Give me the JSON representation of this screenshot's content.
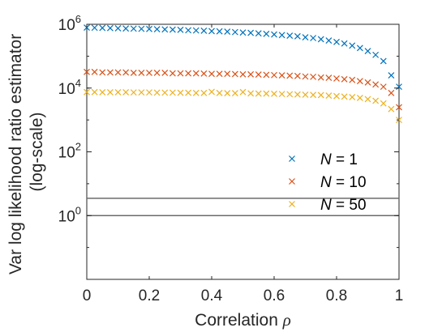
{
  "chart_data": {
    "type": "scatter",
    "xlabel": "Correlation",
    "xlabel_symbol": "ρ",
    "ylabel_line1": "Var log likelihood ratio estimator",
    "ylabel_line2": "(log-scale)",
    "y_scale": "log",
    "xlim": [
      0,
      1
    ],
    "ylim": [
      0.01,
      1000000
    ],
    "x_ticks": [
      0,
      0.2,
      0.4,
      0.6,
      0.8,
      1
    ],
    "x_tick_labels": [
      "0",
      "0.2",
      "0.4",
      "0.6",
      "0.8",
      "1"
    ],
    "y_ticks": [
      1,
      100,
      10000,
      1000000
    ],
    "y_tick_labels": [
      {
        "base": "10",
        "exp": "0"
      },
      {
        "base": "10",
        "exp": "2"
      },
      {
        "base": "10",
        "exp": "4"
      },
      {
        "base": "10",
        "exp": "6"
      }
    ],
    "grid": false,
    "legend_position": "lower-right",
    "marker": "x",
    "x": [
      0,
      0.025,
      0.05,
      0.075,
      0.1,
      0.125,
      0.15,
      0.175,
      0.2,
      0.225,
      0.25,
      0.275,
      0.3,
      0.325,
      0.35,
      0.375,
      0.4,
      0.425,
      0.45,
      0.475,
      0.5,
      0.525,
      0.55,
      0.575,
      0.6,
      0.625,
      0.65,
      0.675,
      0.7,
      0.725,
      0.75,
      0.775,
      0.8,
      0.825,
      0.85,
      0.875,
      0.9,
      0.925,
      0.95,
      0.975,
      1.0
    ],
    "series": [
      {
        "name": "1",
        "legend_var": "N",
        "color": "#0072BD",
        "values": [
          790000,
          780000,
          770000,
          760000,
          750000,
          740000,
          730000,
          720000,
          710000,
          700000,
          690000,
          680000,
          670000,
          650000,
          640000,
          630000,
          610000,
          600000,
          590000,
          570000,
          550000,
          540000,
          520000,
          500000,
          480000,
          460000,
          440000,
          420000,
          390000,
          370000,
          340000,
          310000,
          280000,
          250000,
          215000,
          180000,
          145000,
          110000,
          70000,
          25000,
          11000
        ]
      },
      {
        "name": "10",
        "legend_var": "N",
        "color": "#D95319",
        "values": [
          32000,
          32000,
          31000,
          31000,
          31000,
          31000,
          30000,
          30000,
          30000,
          30000,
          30000,
          29000,
          29000,
          29000,
          29000,
          28500,
          28000,
          28000,
          28000,
          27500,
          27000,
          27000,
          26500,
          26000,
          25500,
          25000,
          24500,
          24000,
          23000,
          22500,
          21500,
          21000,
          20000,
          19000,
          18000,
          16500,
          15000,
          13000,
          11000,
          7000,
          2500
        ]
      },
      {
        "name": "50",
        "legend_var": "N",
        "color": "#EDB120",
        "values": [
          7500,
          7500,
          7400,
          7400,
          7400,
          7400,
          7300,
          7300,
          7300,
          7200,
          7200,
          7200,
          7100,
          7100,
          7000,
          7000,
          7600,
          7000,
          6900,
          6900,
          7500,
          6800,
          6700,
          6700,
          6600,
          6500,
          6400,
          6300,
          6200,
          6100,
          6000,
          5800,
          5600,
          5400,
          5200,
          4900,
          4500,
          4000,
          3300,
          2200,
          1000
        ]
      }
    ],
    "hlines": [
      {
        "y": 3.5,
        "color": "#6b6b6b"
      },
      {
        "y": 1,
        "color": "#6b6b6b"
      }
    ]
  }
}
